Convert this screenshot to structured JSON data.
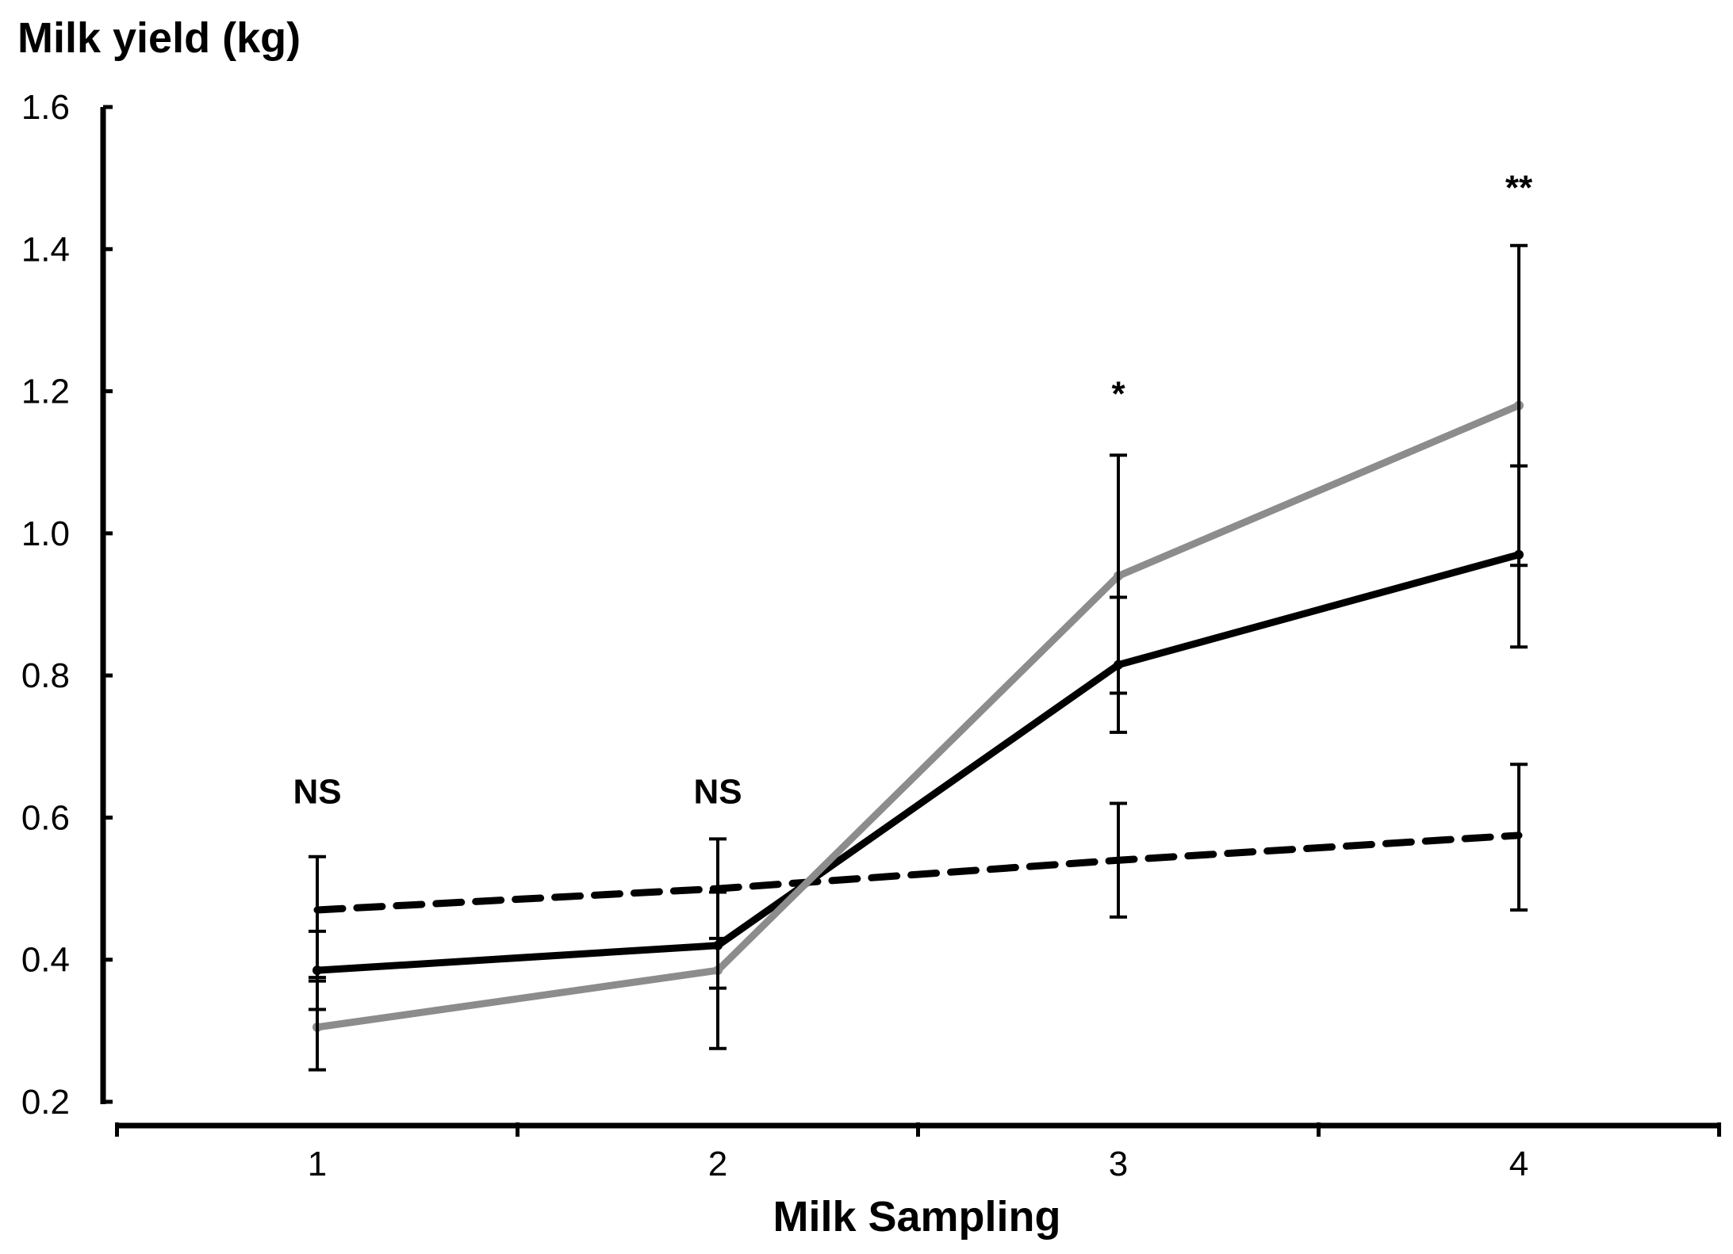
{
  "chart_data": {
    "type": "line",
    "title": "",
    "xlabel": "Milk Sampling",
    "ylabel": "Milk yield (kg)",
    "categories": [
      "1",
      "2",
      "3",
      "4"
    ],
    "ylim": [
      0.2,
      1.6
    ],
    "yticks": [
      "0.2",
      "0.4",
      "0.6",
      "0.8",
      "1.0",
      "1.2",
      "1.4",
      "1.6"
    ],
    "grid": false,
    "series": [
      {
        "name": "dashed-black",
        "color": "#000000",
        "dashed": true,
        "values": [
          0.47,
          0.5,
          0.54,
          0.575
        ],
        "error_low": [
          0.37,
          0.43,
          0.46,
          0.47
        ],
        "error_high": [
          0.545,
          0.57,
          0.62,
          0.675
        ]
      },
      {
        "name": "solid-black",
        "color": "#000000",
        "dashed": false,
        "values": [
          0.385,
          0.42,
          0.815,
          0.97
        ],
        "error_low": [
          0.33,
          0.36,
          0.72,
          0.84
        ],
        "error_high": [
          0.44,
          0.495,
          0.91,
          1.095
        ]
      },
      {
        "name": "solid-gray",
        "color": "#8c8c8c",
        "dashed": false,
        "values": [
          0.305,
          0.385,
          0.94,
          1.18
        ],
        "error_low": [
          0.245,
          0.275,
          0.775,
          0.955
        ],
        "error_high": [
          0.375,
          0.495,
          1.11,
          1.405
        ]
      }
    ],
    "annotations": [
      {
        "text": "NS",
        "category": 0,
        "y": 0.62
      },
      {
        "text": "NS",
        "category": 1,
        "y": 0.62
      },
      {
        "text": "*",
        "category": 2,
        "y": 1.18
      },
      {
        "text": "**",
        "category": 3,
        "y": 1.47
      }
    ]
  }
}
